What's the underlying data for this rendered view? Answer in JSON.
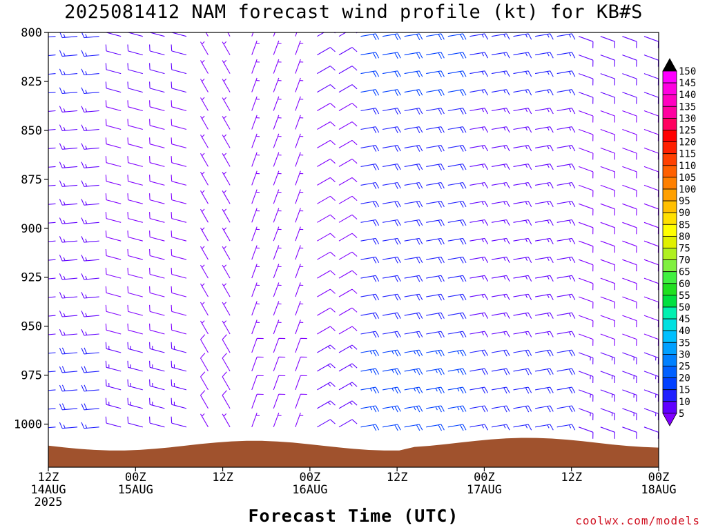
{
  "chart_data": {
    "type": "wind-barb-profile",
    "title": "2025081412 NAM forecast wind profile (kt) for KB#S",
    "xlabel": "Forecast Time (UTC)",
    "ylabel": "",
    "y_axis": {
      "ticks": [
        800,
        825,
        850,
        875,
        900,
        925,
        950,
        975,
        1000
      ],
      "range": [
        800,
        1022
      ],
      "inverted": true,
      "unit": "hPa"
    },
    "x_axis": {
      "range_hours": [
        0,
        84
      ],
      "ticks": [
        {
          "hour": 0,
          "label1": "12Z",
          "label2": "14AUG",
          "label3": "2025"
        },
        {
          "hour": 12,
          "label1": "00Z",
          "label2": "15AUG",
          "label3": ""
        },
        {
          "hour": 24,
          "label1": "12Z",
          "label2": "",
          "label3": ""
        },
        {
          "hour": 36,
          "label1": "00Z",
          "label2": "16AUG",
          "label3": ""
        },
        {
          "hour": 48,
          "label1": "12Z",
          "label2": "",
          "label3": ""
        },
        {
          "hour": 60,
          "label1": "00Z",
          "label2": "17AUG",
          "label3": ""
        },
        {
          "hour": 72,
          "label1": "12Z",
          "label2": "",
          "label3": ""
        },
        {
          "hour": 84,
          "label1": "00Z",
          "label2": "18AUG",
          "label3": ""
        }
      ]
    },
    "colorbar": {
      "levels": [
        5,
        10,
        15,
        20,
        25,
        30,
        35,
        40,
        45,
        50,
        55,
        60,
        65,
        70,
        75,
        80,
        85,
        90,
        95,
        100,
        105,
        110,
        115,
        120,
        125,
        130,
        135,
        140,
        145,
        150
      ],
      "colors": [
        "#8000ff",
        "#6000ff",
        "#2020ff",
        "#0040ff",
        "#0060ff",
        "#0080ff",
        "#00a0ff",
        "#00c0ff",
        "#00e0e0",
        "#00f0b0",
        "#00e040",
        "#20e020",
        "#40f040",
        "#80f040",
        "#b0f020",
        "#e0f000",
        "#ffff00",
        "#ffe000",
        "#ffc000",
        "#ffa000",
        "#ff8000",
        "#ff6000",
        "#ff4000",
        "#ff2000",
        "#ff0000",
        "#ff0060",
        "#ff00a0",
        "#ff00c0",
        "#ff00e0",
        "#ff00ff"
      ],
      "top_color": "#000000",
      "bottom_color": "#8000ff"
    },
    "terrain_color": "#a0522d",
    "wind_profile": [
      {
        "t_from": 0,
        "t_to": 8,
        "dir_deg": 265,
        "speed_kt": 15
      },
      {
        "t_from": 8,
        "t_to": 20,
        "dir_deg": 285,
        "speed_kt": 10
      },
      {
        "t_from": 20,
        "t_to": 26,
        "dir_deg": 330,
        "speed_kt": 5
      },
      {
        "t_from": 26,
        "t_to": 34,
        "dir_deg": 20,
        "speed_kt": 5
      },
      {
        "t_from": 34,
        "t_to": 40,
        "dir_deg": 60,
        "speed_kt": 10
      },
      {
        "t_from": 40,
        "t_to": 56,
        "dir_deg": 80,
        "speed_kt": 20
      },
      {
        "t_from": 56,
        "t_to": 70,
        "dir_deg": 80,
        "speed_kt": 15
      },
      {
        "t_from": 70,
        "t_to": 84,
        "dir_deg": 110,
        "speed_kt": 10
      }
    ]
  },
  "credit": "coolwx.com/models"
}
